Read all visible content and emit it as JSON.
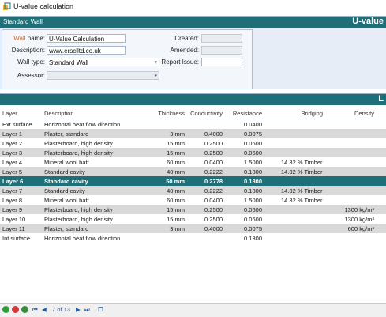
{
  "window": {
    "title": "U-value calculation"
  },
  "wall_panel": {
    "header_left": "Standard Wall",
    "header_right": "U-value",
    "wall_name": {
      "label_accent": "Wall",
      "label_rest": " name:",
      "value": "U-Value Calculation"
    },
    "description": {
      "label": "Description:",
      "value": "www.ersclltd.co.uk"
    },
    "wall_type": {
      "label": "Wall type:",
      "value": "Standard Wall"
    },
    "assessor": {
      "label": "Assessor:",
      "value": ""
    },
    "created": {
      "label": "Created:",
      "value": ""
    },
    "amended": {
      "label": "Amended:",
      "value": ""
    },
    "report_issue": {
      "label": "Report Issue:",
      "value": ""
    }
  },
  "layers_panel": {
    "header_right": "L",
    "columns": [
      "Layer",
      "Description",
      "Thickness",
      "Conductivity",
      "Resistance",
      "Bridging",
      "Density"
    ],
    "rows": [
      {
        "layer": "Ext surface",
        "description": "Horizontal heat flow direction",
        "thickness": "",
        "conductivity": "",
        "resistance": "0.0400",
        "bridging": "",
        "density": ""
      },
      {
        "layer": "Layer 1",
        "description": "Plaster, standard",
        "thickness": "3 mm",
        "conductivity": "0.4000",
        "resistance": "0.0075",
        "bridging": "",
        "density": ""
      },
      {
        "layer": "Layer 2",
        "description": "Plasterboard, high density",
        "thickness": "15 mm",
        "conductivity": "0.2500",
        "resistance": "0.0600",
        "bridging": "",
        "density": ""
      },
      {
        "layer": "Layer 3",
        "description": "Plasterboard, high density",
        "thickness": "15 mm",
        "conductivity": "0.2500",
        "resistance": "0.0600",
        "bridging": "",
        "density": ""
      },
      {
        "layer": "Layer 4",
        "description": "Mineral wool batt",
        "thickness": "60 mm",
        "conductivity": "0.0400",
        "resistance": "1.5000",
        "bridging": "14.32 % Timber",
        "density": ""
      },
      {
        "layer": "Layer 5",
        "description": "Standard cavity",
        "thickness": "40 mm",
        "conductivity": "0.2222",
        "resistance": "0.1800",
        "bridging": "14.32 % Timber",
        "density": ""
      },
      {
        "layer": "Layer 6",
        "description": "Standard cavity",
        "thickness": "50 mm",
        "conductivity": "0.2778",
        "resistance": "0.1800",
        "bridging": "",
        "density": ""
      },
      {
        "layer": "Layer 7",
        "description": "Standard cavity",
        "thickness": "40 mm",
        "conductivity": "0.2222",
        "resistance": "0.1800",
        "bridging": "14.32 % Timber",
        "density": ""
      },
      {
        "layer": "Layer 8",
        "description": "Mineral wool batt",
        "thickness": "60 mm",
        "conductivity": "0.0400",
        "resistance": "1.5000",
        "bridging": "14.32 % Timber",
        "density": ""
      },
      {
        "layer": "Layer 9",
        "description": "Plasterboard, high density",
        "thickness": "15 mm",
        "conductivity": "0.2500",
        "resistance": "0.0600",
        "bridging": "",
        "density": "1300 kg/m³"
      },
      {
        "layer": "Layer 10",
        "description": "Plasterboard, high density",
        "thickness": "15 mm",
        "conductivity": "0.2500",
        "resistance": "0.0600",
        "bridging": "",
        "density": "1300 kg/m³"
      },
      {
        "layer": "Layer 11",
        "description": "Plaster, standard",
        "thickness": "3 mm",
        "conductivity": "0.4000",
        "resistance": "0.0075",
        "bridging": "",
        "density": "600 kg/m³"
      },
      {
        "layer": "Int surface",
        "description": "Horizontal heat flow direction",
        "thickness": "",
        "conductivity": "",
        "resistance": "0.1300",
        "bridging": "",
        "density": ""
      }
    ],
    "selected_index": 6
  },
  "navigator": {
    "record_text": "7 of 13"
  },
  "colors": {
    "header": "#1e6f77",
    "accent": "#d4631c",
    "selected_row": "#1e6f77",
    "alt_row": "#d9d9d9"
  }
}
